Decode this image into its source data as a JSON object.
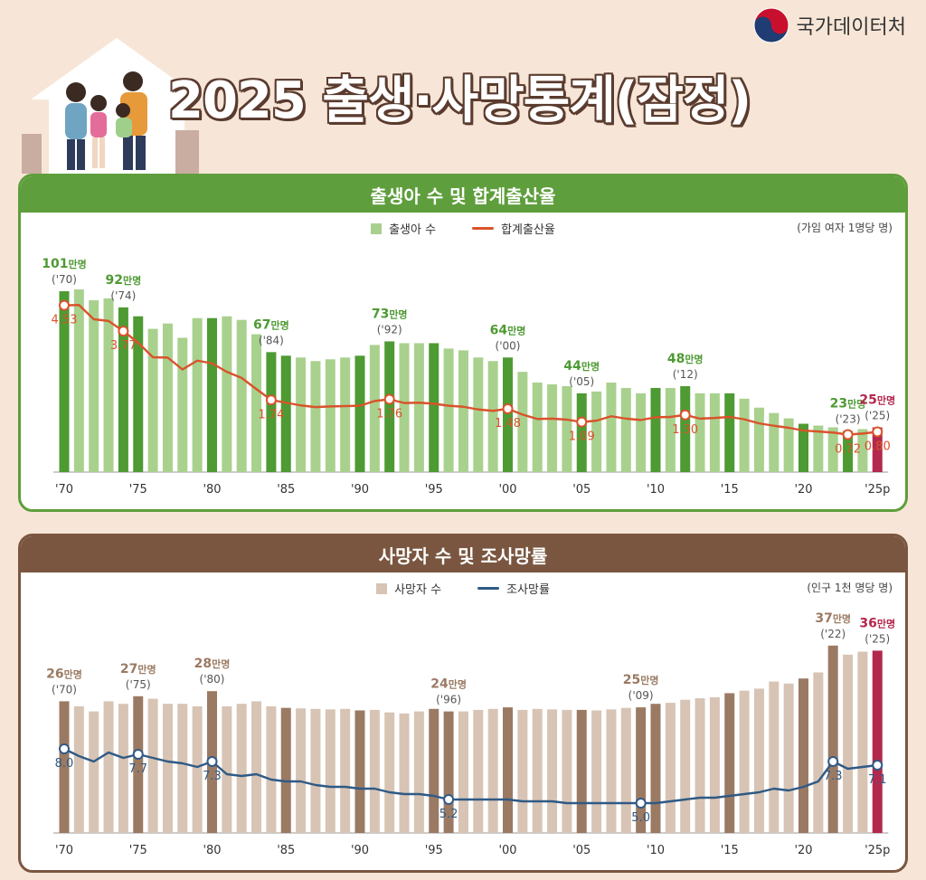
{
  "brand": {
    "logo_text": "국가데이터처",
    "accent": "#5e9e3c",
    "death_accent": "#7a5640",
    "highlight": "#b3284d"
  },
  "title": "2025 출생·사망통계(잠정)",
  "birth_panel": {
    "header": "출생아 수 및 합계출산율",
    "legend_bar": "출생아 수",
    "legend_line": "합계출산율",
    "unit": "(가임 여자 1명당 명)"
  },
  "death_panel": {
    "header": "사망자 수 및 조사망률",
    "legend_bar": "사망자 수",
    "legend_line": "조사망률",
    "unit": "(인구 1천 명당 명)"
  },
  "chart_data": [
    {
      "type": "bar",
      "years": [
        1970,
        1971,
        1972,
        1973,
        1974,
        1975,
        1976,
        1977,
        1978,
        1979,
        1980,
        1981,
        1982,
        1983,
        1984,
        1985,
        1986,
        1987,
        1988,
        1989,
        1990,
        1991,
        1992,
        1993,
        1994,
        1995,
        1996,
        1997,
        1998,
        1999,
        2000,
        2001,
        2002,
        2003,
        2004,
        2005,
        2006,
        2007,
        2008,
        2009,
        2010,
        2011,
        2012,
        2013,
        2014,
        2015,
        2016,
        2017,
        2018,
        2019,
        2020,
        2021,
        2022,
        2023,
        2024,
        2025
      ],
      "x_tick_labels": [
        "'70",
        "'75",
        "'80",
        "'85",
        "'90",
        "'95",
        "'00",
        "'05",
        "'10",
        "'15",
        "'20",
        "'25p"
      ],
      "series": [
        {
          "name": "출생아 수",
          "unit": "만명",
          "values": [
            101,
            102,
            96,
            97,
            92,
            87,
            80,
            83,
            75,
            86,
            86,
            87,
            85,
            77,
            67,
            65,
            64,
            62,
            63,
            64,
            65,
            71,
            73,
            72,
            72,
            72,
            69,
            68,
            64,
            62,
            64,
            56,
            50,
            49,
            48,
            44,
            45,
            50,
            47,
            44,
            47,
            47,
            48,
            44,
            44,
            44,
            41,
            36,
            33,
            30,
            27,
            26,
            25,
            23,
            24,
            25
          ]
        },
        {
          "name": "합계출산율",
          "values": [
            4.53,
            4.54,
            4.12,
            4.07,
            3.77,
            3.43,
            3.0,
            2.99,
            2.64,
            2.9,
            2.82,
            2.57,
            2.39,
            2.06,
            1.74,
            1.66,
            1.58,
            1.53,
            1.55,
            1.56,
            1.57,
            1.71,
            1.76,
            1.65,
            1.66,
            1.63,
            1.57,
            1.54,
            1.46,
            1.42,
            1.48,
            1.31,
            1.18,
            1.19,
            1.16,
            1.09,
            1.13,
            1.26,
            1.19,
            1.15,
            1.23,
            1.24,
            1.3,
            1.19,
            1.21,
            1.24,
            1.17,
            1.05,
            0.98,
            0.92,
            0.84,
            0.81,
            0.78,
            0.72,
            0.75,
            0.8
          ]
        }
      ],
      "bar_callouts": [
        {
          "year": 1970,
          "value": "101",
          "unit": "만명",
          "label": "('70)"
        },
        {
          "year": 1974,
          "value": "92",
          "unit": "만명",
          "label": "('74)"
        },
        {
          "year": 1984,
          "value": "67",
          "unit": "만명",
          "label": "('84)"
        },
        {
          "year": 1992,
          "value": "73",
          "unit": "만명",
          "label": "('92)"
        },
        {
          "year": 2000,
          "value": "64",
          "unit": "만명",
          "label": "('00)"
        },
        {
          "year": 2005,
          "value": "44",
          "unit": "만명",
          "label": "('05)"
        },
        {
          "year": 2012,
          "value": "48",
          "unit": "만명",
          "label": "('12)"
        },
        {
          "year": 2023,
          "value": "23",
          "unit": "만명",
          "label": "('23)"
        },
        {
          "year": 2025,
          "value": "25",
          "unit": "만명",
          "label": "('25)"
        }
      ],
      "line_callouts": [
        {
          "year": 1970,
          "label": "4.53"
        },
        {
          "year": 1974,
          "label": "3.77"
        },
        {
          "year": 1984,
          "label": "1.74"
        },
        {
          "year": 1992,
          "label": "1.76"
        },
        {
          "year": 2000,
          "label": "1.48"
        },
        {
          "year": 2005,
          "label": "1.09"
        },
        {
          "year": 2012,
          "label": "1.30"
        },
        {
          "year": 2023,
          "label": "0.72"
        },
        {
          "year": 2025,
          "label": "0.80"
        }
      ],
      "colors": {
        "bar": "#a9d18e",
        "bar_dark": "#4e9a33",
        "line": "#d9532b",
        "callout": "#4e9a33",
        "highlight": "#b3284d"
      }
    },
    {
      "type": "bar",
      "years": [
        1970,
        1971,
        1972,
        1973,
        1974,
        1975,
        1976,
        1977,
        1978,
        1979,
        1980,
        1981,
        1982,
        1983,
        1984,
        1985,
        1986,
        1987,
        1988,
        1989,
        1990,
        1991,
        1992,
        1993,
        1994,
        1995,
        1996,
        1997,
        1998,
        1999,
        2000,
        2001,
        2002,
        2003,
        2004,
        2005,
        2006,
        2007,
        2008,
        2009,
        2010,
        2011,
        2012,
        2013,
        2014,
        2015,
        2016,
        2017,
        2018,
        2019,
        2020,
        2021,
        2022,
        2023,
        2024,
        2025
      ],
      "x_tick_labels": [
        "'70",
        "'75",
        "'80",
        "'85",
        "'90",
        "'95",
        "'00",
        "'05",
        "'10",
        "'15",
        "'20",
        "'25p"
      ],
      "series": [
        {
          "name": "사망자 수",
          "unit": "만명",
          "values": [
            26,
            25,
            24,
            26,
            25.5,
            27,
            26.5,
            25.5,
            25.5,
            25,
            28,
            25,
            25.5,
            26,
            25,
            24.7,
            24.6,
            24.5,
            24.4,
            24.5,
            24.2,
            24.3,
            23.8,
            23.6,
            24,
            24.5,
            24,
            24,
            24.3,
            24.5,
            24.8,
            24.3,
            24.5,
            24.4,
            24.3,
            24.3,
            24.2,
            24.4,
            24.7,
            24.8,
            25.5,
            25.7,
            26.3,
            26.6,
            26.8,
            27.6,
            28.1,
            28.5,
            29.9,
            29.5,
            30.5,
            31.7,
            37,
            35.2,
            35.8,
            36
          ]
        },
        {
          "name": "조사망률",
          "values": [
            8.0,
            7.6,
            7.3,
            7.8,
            7.5,
            7.7,
            7.5,
            7.3,
            7.2,
            7.0,
            7.3,
            6.6,
            6.5,
            6.6,
            6.3,
            6.2,
            6.2,
            6.0,
            5.9,
            5.9,
            5.8,
            5.8,
            5.6,
            5.5,
            5.5,
            5.4,
            5.2,
            5.2,
            5.2,
            5.2,
            5.2,
            5.1,
            5.1,
            5.1,
            5.0,
            5.0,
            5.0,
            5.0,
            5.0,
            5.0,
            5.0,
            5.1,
            5.2,
            5.3,
            5.3,
            5.4,
            5.5,
            5.6,
            5.8,
            5.7,
            5.9,
            6.2,
            7.3,
            6.9,
            7.0,
            7.1
          ]
        }
      ],
      "bar_callouts": [
        {
          "year": 1970,
          "value": "26",
          "unit": "만명",
          "label": "('70)"
        },
        {
          "year": 1975,
          "value": "27",
          "unit": "만명",
          "label": "('75)"
        },
        {
          "year": 1980,
          "value": "28",
          "unit": "만명",
          "label": "('80)"
        },
        {
          "year": 1996,
          "value": "24",
          "unit": "만명",
          "label": "('96)"
        },
        {
          "year": 2009,
          "value": "25",
          "unit": "만명",
          "label": "('09)"
        },
        {
          "year": 2022,
          "value": "37",
          "unit": "만명",
          "label": "('22)"
        },
        {
          "year": 2025,
          "value": "36",
          "unit": "만명",
          "label": "('25)"
        }
      ],
      "line_callouts": [
        {
          "year": 1970,
          "label": "8.0"
        },
        {
          "year": 1975,
          "label": "7.7"
        },
        {
          "year": 1980,
          "label": "7.3"
        },
        {
          "year": 1996,
          "label": "5.2"
        },
        {
          "year": 2009,
          "label": "5.0"
        },
        {
          "year": 2022,
          "label": "7.3"
        },
        {
          "year": 2025,
          "label": "7.1"
        }
      ],
      "colors": {
        "bar": "#d8c4b4",
        "bar_dark": "#9b7a63",
        "line": "#2f5a86",
        "callout": "#9b7a63",
        "highlight": "#b3284d"
      }
    }
  ]
}
